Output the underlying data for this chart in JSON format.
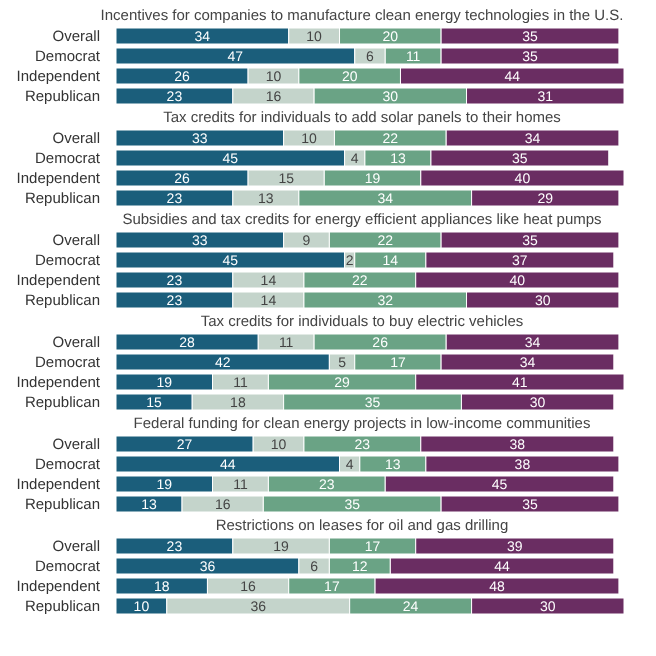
{
  "chart_data": [
    {
      "type": "bar",
      "orientation": "horizontal",
      "stacked": true,
      "title": "Incentives for companies to manufacture clean energy technologies in the U.S.",
      "categories": [
        "Overall",
        "Democrat",
        "Independent",
        "Republican"
      ],
      "xlim": [
        0,
        100
      ],
      "tick_labels": "y",
      "data_labels": true,
      "legend": false,
      "series": [
        {
          "color": "#1b5e7b",
          "values": [
            34,
            47,
            26,
            23
          ]
        },
        {
          "color": "#c4d4cb",
          "values": [
            10,
            6,
            10,
            16
          ]
        },
        {
          "color": "#6aa385",
          "values": [
            20,
            11,
            20,
            30
          ]
        },
        {
          "color": "#6a2d62",
          "values": [
            35,
            35,
            44,
            31
          ]
        }
      ]
    },
    {
      "type": "bar",
      "orientation": "horizontal",
      "stacked": true,
      "title": "Tax credits for individuals to add solar panels to their homes",
      "categories": [
        "Overall",
        "Democrat",
        "Independent",
        "Republican"
      ],
      "xlim": [
        0,
        100
      ],
      "tick_labels": "y",
      "data_labels": true,
      "legend": false,
      "series": [
        {
          "color": "#1b5e7b",
          "values": [
            33,
            45,
            26,
            23
          ]
        },
        {
          "color": "#c4d4cb",
          "values": [
            10,
            4,
            15,
            13
          ]
        },
        {
          "color": "#6aa385",
          "values": [
            22,
            13,
            19,
            34
          ]
        },
        {
          "color": "#6a2d62",
          "values": [
            34,
            35,
            40,
            29
          ]
        }
      ]
    },
    {
      "type": "bar",
      "orientation": "horizontal",
      "stacked": true,
      "title": "Subsidies and tax credits for energy efficient appliances like heat pumps",
      "categories": [
        "Overall",
        "Democrat",
        "Independent",
        "Republican"
      ],
      "xlim": [
        0,
        100
      ],
      "tick_labels": "y",
      "data_labels": true,
      "legend": false,
      "series": [
        {
          "color": "#1b5e7b",
          "values": [
            33,
            45,
            23,
            23
          ]
        },
        {
          "color": "#c4d4cb",
          "values": [
            9,
            2,
            14,
            14
          ]
        },
        {
          "color": "#6aa385",
          "values": [
            22,
            14,
            22,
            32
          ]
        },
        {
          "color": "#6a2d62",
          "values": [
            35,
            37,
            40,
            30
          ]
        }
      ]
    },
    {
      "type": "bar",
      "orientation": "horizontal",
      "stacked": true,
      "title": "Tax credits for individuals to buy electric vehicles",
      "categories": [
        "Overall",
        "Democrat",
        "Independent",
        "Republican"
      ],
      "xlim": [
        0,
        100
      ],
      "tick_labels": "y",
      "data_labels": true,
      "legend": false,
      "series": [
        {
          "color": "#1b5e7b",
          "values": [
            28,
            42,
            19,
            15
          ]
        },
        {
          "color": "#c4d4cb",
          "values": [
            11,
            5,
            11,
            18
          ]
        },
        {
          "color": "#6aa385",
          "values": [
            26,
            17,
            29,
            35
          ]
        },
        {
          "color": "#6a2d62",
          "values": [
            34,
            34,
            41,
            30
          ]
        }
      ]
    },
    {
      "type": "bar",
      "orientation": "horizontal",
      "stacked": true,
      "title": "Federal funding for clean energy projects in low-income communities",
      "categories": [
        "Overall",
        "Democrat",
        "Independent",
        "Republican"
      ],
      "xlim": [
        0,
        100
      ],
      "tick_labels": "y",
      "data_labels": true,
      "legend": false,
      "series": [
        {
          "color": "#1b5e7b",
          "values": [
            27,
            44,
            19,
            13
          ]
        },
        {
          "color": "#c4d4cb",
          "values": [
            10,
            4,
            11,
            16
          ]
        },
        {
          "color": "#6aa385",
          "values": [
            23,
            13,
            23,
            35
          ]
        },
        {
          "color": "#6a2d62",
          "values": [
            38,
            38,
            45,
            35
          ]
        }
      ]
    },
    {
      "type": "bar",
      "orientation": "horizontal",
      "stacked": true,
      "title": "Restrictions on leases for oil and gas drilling",
      "categories": [
        "Overall",
        "Democrat",
        "Independent",
        "Republican"
      ],
      "xlim": [
        0,
        100
      ],
      "tick_labels": "y",
      "data_labels": true,
      "legend": false,
      "series": [
        {
          "color": "#1b5e7b",
          "values": [
            23,
            36,
            18,
            10
          ]
        },
        {
          "color": "#c4d4cb",
          "values": [
            19,
            6,
            16,
            36
          ]
        },
        {
          "color": "#6aa385",
          "values": [
            17,
            12,
            17,
            24
          ]
        },
        {
          "color": "#6a2d62",
          "values": [
            39,
            44,
            48,
            30
          ]
        }
      ]
    }
  ]
}
